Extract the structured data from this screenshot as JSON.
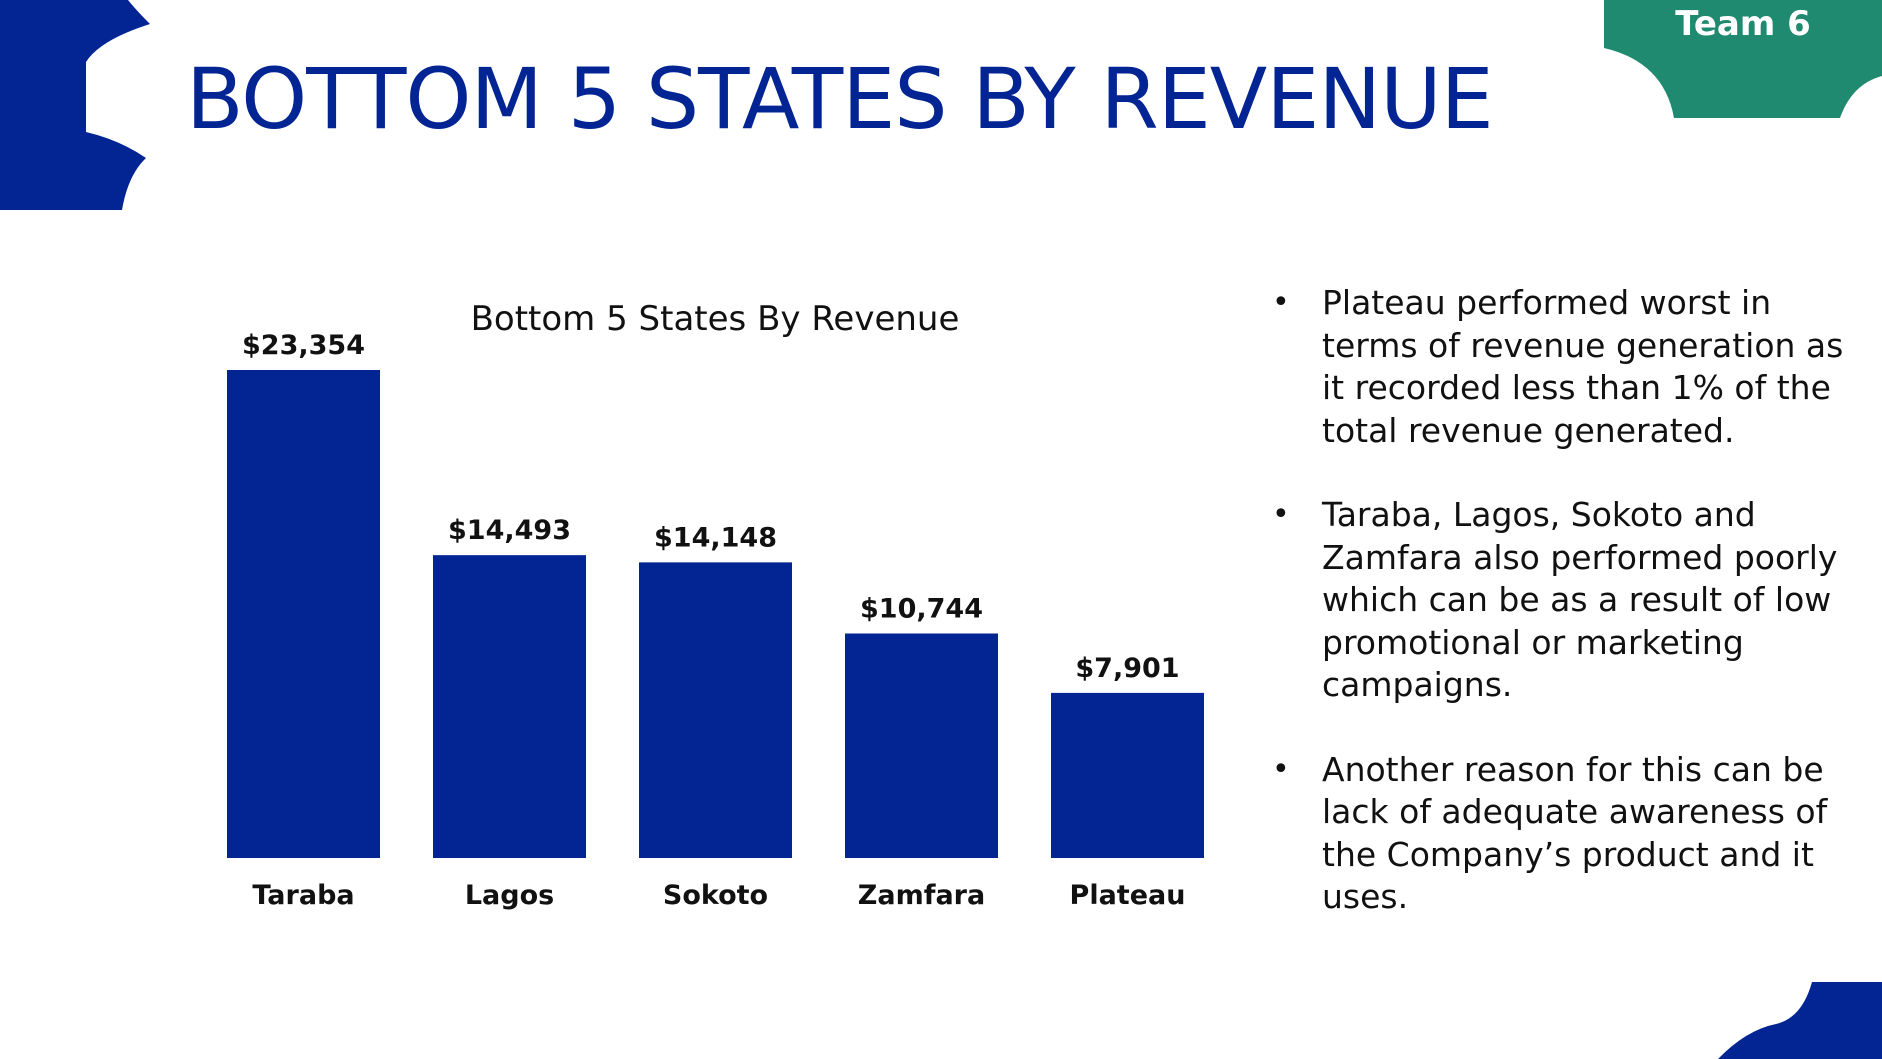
{
  "slide": {
    "title": "BOTTOM 5 STATES BY REVENUE",
    "badge": "Team 6",
    "colors": {
      "primary": "#032593",
      "badge": "#1f8a70",
      "text": "#111111",
      "background": "#ffffff"
    },
    "notes": [
      "Plateau performed worst in terms of revenue generation as it recorded less than 1% of the total revenue generated.",
      "Taraba, Lagos, Sokoto and Zamfara also performed poorly which can be as a result of low promotional or marketing campaigns.",
      "Another reason for this can be lack of adequate awareness of the Company’s product and it uses."
    ]
  },
  "chart_data": {
    "type": "bar",
    "title": "Bottom 5 States By Revenue",
    "categories": [
      "Taraba",
      "Lagos",
      "Sokoto",
      "Zamfara",
      "Plateau"
    ],
    "values": [
      23354,
      14493,
      14148,
      10744,
      7901
    ],
    "data_labels": [
      "$23,354",
      "$14,493",
      "$14,148",
      "$10,744",
      "$7,901"
    ],
    "xlabel": "",
    "ylabel": "",
    "ylim": [
      0,
      23354
    ],
    "grid": false,
    "legend": "none",
    "bar_color": "#032593"
  }
}
